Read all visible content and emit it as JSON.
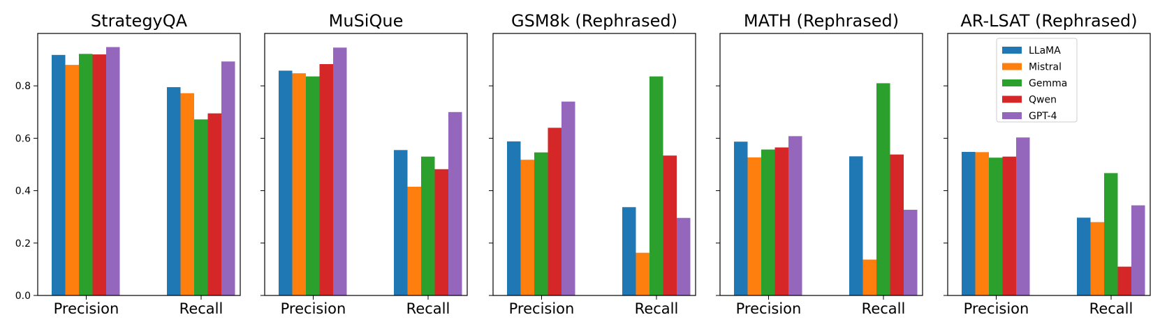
{
  "chart_data": {
    "type": "bar",
    "series_names": [
      "LLaMA",
      "Mistral",
      "Gemma",
      "Qwen",
      "GPT-4"
    ],
    "colors": [
      "#1f77b4",
      "#ff7f0e",
      "#2ca02c",
      "#d62728",
      "#9467bd"
    ],
    "categories": [
      "Precision",
      "Recall"
    ],
    "ylim": [
      0,
      1.0
    ],
    "yticks": [
      "0.0",
      "0.2",
      "0.4",
      "0.6",
      "0.8"
    ],
    "ytick_values": [
      0.0,
      0.2,
      0.4,
      0.6,
      0.8
    ],
    "legend_position": "top-right",
    "panels": [
      {
        "title": "StrategyQA",
        "series": [
          {
            "name": "LLaMA",
            "values": [
              0.918,
              0.795
            ]
          },
          {
            "name": "Mistral",
            "values": [
              0.88,
              0.772
            ]
          },
          {
            "name": "Gemma",
            "values": [
              0.922,
              0.672
            ]
          },
          {
            "name": "Qwen",
            "values": [
              0.92,
              0.695
            ]
          },
          {
            "name": "GPT-4",
            "values": [
              0.948,
              0.893
            ]
          }
        ]
      },
      {
        "title": "MuSiQue",
        "series": [
          {
            "name": "LLaMA",
            "values": [
              0.858,
              0.555
            ]
          },
          {
            "name": "Mistral",
            "values": [
              0.848,
              0.415
            ]
          },
          {
            "name": "Gemma",
            "values": [
              0.836,
              0.53
            ]
          },
          {
            "name": "Qwen",
            "values": [
              0.883,
              0.482
            ]
          },
          {
            "name": "GPT-4",
            "values": [
              0.946,
              0.7
            ]
          }
        ]
      },
      {
        "title": "GSM8k (Rephrased)",
        "series": [
          {
            "name": "LLaMA",
            "values": [
              0.588,
              0.337
            ]
          },
          {
            "name": "Mistral",
            "values": [
              0.518,
              0.163
            ]
          },
          {
            "name": "Gemma",
            "values": [
              0.546,
              0.836
            ]
          },
          {
            "name": "Qwen",
            "values": [
              0.64,
              0.534
            ]
          },
          {
            "name": "GPT-4",
            "values": [
              0.74,
              0.296
            ]
          }
        ]
      },
      {
        "title": "MATH (Rephrased)",
        "series": [
          {
            "name": "LLaMA",
            "values": [
              0.587,
              0.531
            ]
          },
          {
            "name": "Mistral",
            "values": [
              0.527,
              0.137
            ]
          },
          {
            "name": "Gemma",
            "values": [
              0.557,
              0.81
            ]
          },
          {
            "name": "Qwen",
            "values": [
              0.565,
              0.538
            ]
          },
          {
            "name": "GPT-4",
            "values": [
              0.608,
              0.327
            ]
          }
        ]
      },
      {
        "title": "AR-LSAT (Rephrased)",
        "series": [
          {
            "name": "LLaMA",
            "values": [
              0.548,
              0.297
            ]
          },
          {
            "name": "Mistral",
            "values": [
              0.547,
              0.28
            ]
          },
          {
            "name": "Gemma",
            "values": [
              0.526,
              0.467
            ]
          },
          {
            "name": "Qwen",
            "values": [
              0.53,
              0.11
            ]
          },
          {
            "name": "GPT-4",
            "values": [
              0.603,
              0.344
            ]
          }
        ]
      }
    ]
  }
}
